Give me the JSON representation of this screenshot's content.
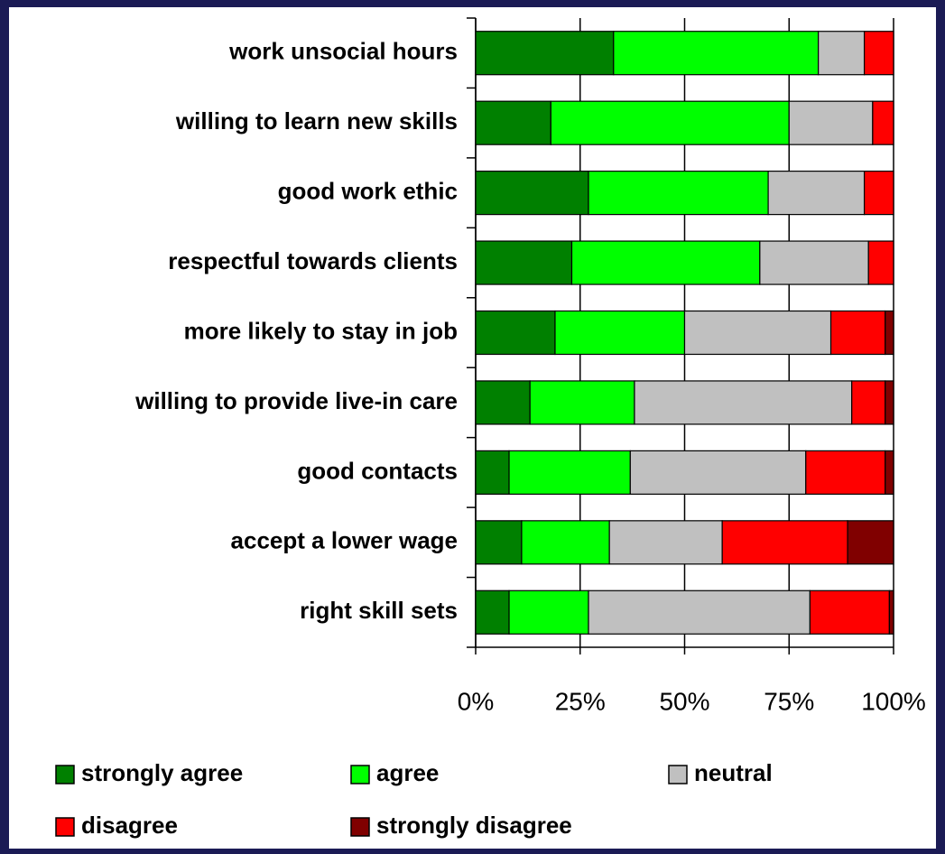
{
  "chart_data": {
    "type": "stacked-bar-horizontal",
    "categories": [
      "work unsocial hours",
      "willing to learn new skills",
      "good work ethic",
      "respectful towards clients",
      "more likely to stay in job",
      "willing to provide live-in care",
      "good contacts",
      "accept a lower wage",
      "right skill sets"
    ],
    "series": [
      {
        "name": "strongly agree",
        "color": "#008000",
        "values": [
          33,
          18,
          27,
          23,
          19,
          13,
          8,
          11,
          8
        ]
      },
      {
        "name": "agree",
        "color": "#00ff00",
        "values": [
          49,
          57,
          43,
          45,
          31,
          25,
          29,
          21,
          19
        ]
      },
      {
        "name": "neutral",
        "color": "#c0c0c0",
        "values": [
          11,
          20,
          23,
          26,
          35,
          52,
          42,
          27,
          53
        ]
      },
      {
        "name": "disagree",
        "color": "#ff0000",
        "values": [
          7,
          5,
          7,
          6,
          13,
          8,
          19,
          30,
          19
        ]
      },
      {
        "name": "strongly disagree",
        "color": "#800000",
        "values": [
          0,
          0,
          0,
          0,
          2,
          2,
          2,
          11,
          1
        ]
      }
    ],
    "xlim": [
      0,
      100
    ],
    "xticks": [
      {
        "value": 0,
        "label": "0%"
      },
      {
        "value": 25,
        "label": "25%"
      },
      {
        "value": 50,
        "label": "50%"
      },
      {
        "value": 75,
        "label": "75%"
      },
      {
        "value": 100,
        "label": "100%"
      }
    ],
    "grid": true
  }
}
